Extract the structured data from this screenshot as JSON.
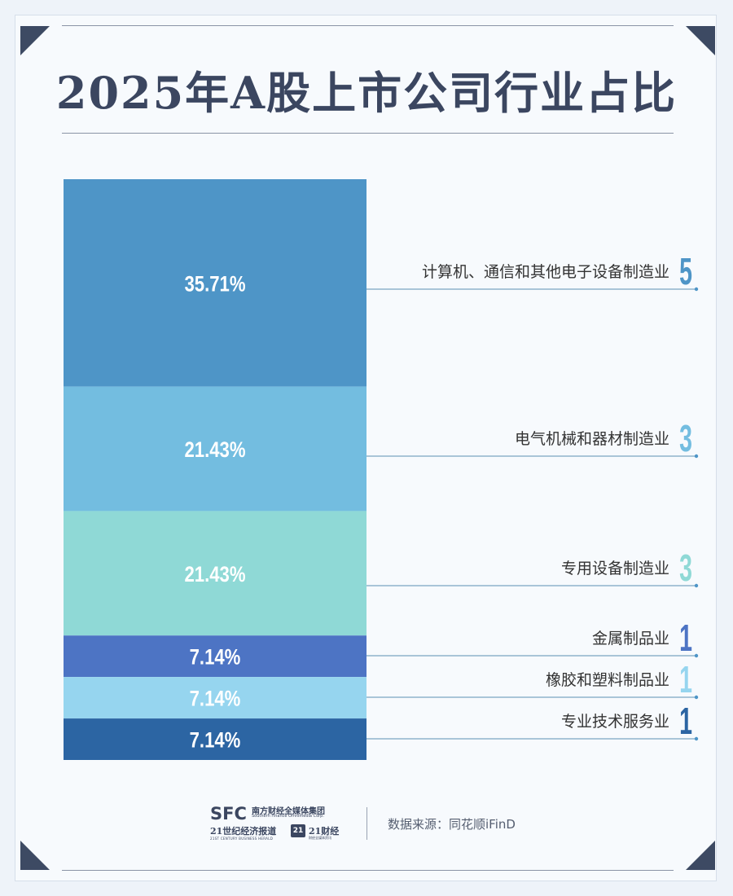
{
  "title": "2025年A股上市公司行业占比",
  "chart_data": {
    "type": "bar",
    "subtype": "stacked-100-percent",
    "categories": [
      "计算机、通信和其他电子设备制造业",
      "电气机械和器材制造业",
      "专用设备制造业",
      "金属制品业",
      "橡胶和塑料制品业",
      "专业技术服务业"
    ],
    "values": [
      5,
      3,
      3,
      1,
      1,
      1
    ],
    "value_labels": [
      "5",
      "3",
      "3",
      "1",
      "1",
      "1"
    ],
    "percent_labels": [
      "35.71%",
      "21.43%",
      "21.43%",
      "7.14%",
      "7.14%",
      "7.14%"
    ],
    "colors": [
      "#4e95c7",
      "#73bde0",
      "#8fd9d6",
      "#4d74c4",
      "#96d5ef",
      "#2c65a3"
    ],
    "legend": "right"
  },
  "footer": {
    "logo_sfc": "SFC",
    "logo_sfc_cn": "南方财经全媒体集团",
    "logo_sfc_en": "Southern Finance Omnimedia Corp.",
    "logo_21": "21世纪经济报道",
    "logo_21_en": "21ST CENTURY BUSINESS HERALD",
    "logo_21_badge": "21",
    "logo_21cj": "21财经",
    "logo_21cj_sub": "财经全媒体资讯",
    "source": "数据来源：同花顺iFinD"
  }
}
